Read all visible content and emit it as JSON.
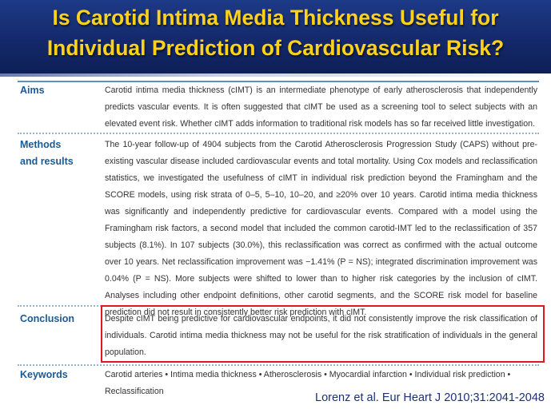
{
  "header": {
    "title_line1": "Is Carotid Intima Media Thickness Useful for",
    "title_line2": "Individual Prediction of Cardiovascular Risk?"
  },
  "sections": {
    "aims": {
      "label": "Aims",
      "text": "Carotid intima media thickness (cIMT) is an intermediate phenotype of early atherosclerosis that independently predicts vascular events. It is often suggested that cIMT be used as a screening tool to select subjects with an elevated event risk. Whether cIMT adds information to traditional risk models has so far received little investigation."
    },
    "methods": {
      "label_line1": "Methods",
      "label_line2": "and results",
      "text": "The 10-year follow-up of 4904 subjects from the Carotid Atherosclerosis Progression Study (CAPS) without pre-existing vascular disease included cardiovascular events and total mortality. Using Cox models and reclassification statistics, we investigated the usefulness of cIMT in individual risk prediction beyond the Framingham and the SCORE models, using risk strata of 0–5, 5–10, 10–20, and ≥20% over 10 years. Carotid intima media thickness was significantly and independently predictive for cardiovascular events. Compared with a model using the Framingham risk factors, a second model that included the common carotid-IMT led to the reclassification of 357 subjects (8.1%). In 107 subjects (30.0%), this reclassification was correct as confirmed with the actual outcome over 10 years. Net reclassification improvement was −1.41% (P = NS); integrated discrimination improvement was 0.04% (P = NS). More subjects were shifted to lower than to higher risk categories by the inclusion of cIMT. Analyses including other endpoint definitions, other carotid segments, and the SCORE risk model for baseline prediction did not result in consistently better risk prediction with cIMT."
    },
    "conclusion": {
      "label": "Conclusion",
      "text": "Despite cIMT being predictive for cardiovascular endpoints, it did not consistently improve the risk classification of individuals. Carotid intima media thickness may not be useful for the risk stratification of individuals in the general population."
    },
    "keywords": {
      "label": "Keywords",
      "text": "Carotid arteries • Intima media thickness • Atherosclerosis • Myocardial infarction • Individual risk prediction • Reclassification"
    }
  },
  "citation": "Lorenz et al. Eur Heart J 2010;31:2041-2048",
  "colors": {
    "header_bg": "#14296b",
    "title_text": "#ffd21a",
    "label_text": "#1a5a95",
    "highlight_box": "#e0191e",
    "citation_text": "#1d2f7a"
  }
}
